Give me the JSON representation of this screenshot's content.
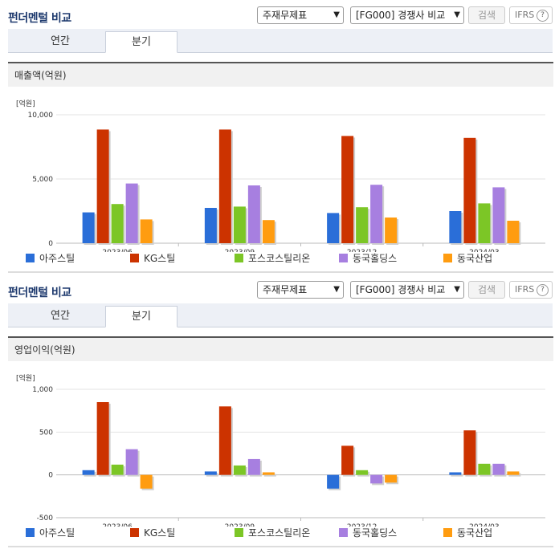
{
  "panels": [
    {
      "title": "펀더멘털 비교",
      "select_type": "주재무제표",
      "select_compare": "[FG000] 경쟁사 비교",
      "search_label": "검색",
      "ifrs_label": "IFRS",
      "help_glyph": "?",
      "tabs": [
        "연간",
        "분기"
      ],
      "active_tab": "분기",
      "metric_label": "매출액(억원)",
      "unit_label": "[억원]"
    },
    {
      "title": "펀더멘털 비교",
      "select_type": "주재무제표",
      "select_compare": "[FG000] 경쟁사 비교",
      "search_label": "검색",
      "ifrs_label": "IFRS",
      "help_glyph": "?",
      "tabs": [
        "연간",
        "분기"
      ],
      "active_tab": "분기",
      "metric_label": "영업이익(억원)",
      "unit_label": "[억원]"
    }
  ],
  "colors": {
    "아주스틸": "#2a6ed8",
    "KG스틸": "#cc3300",
    "포스코스틸리온": "#7cc626",
    "동국홀딩스": "#a77fe0",
    "동국산업": "#ff9c10"
  },
  "chart_data": [
    {
      "type": "bar",
      "categories": [
        "2023/06",
        "2023/09",
        "2023/12",
        "2024/03"
      ],
      "ylim": [
        0,
        10000
      ],
      "yticks": [
        "0",
        "5,000",
        "10,000"
      ],
      "ytick_values": [
        0,
        5000,
        10000
      ],
      "series": [
        {
          "name": "아주스틸",
          "values": [
            2400,
            2750,
            2350,
            2500
          ]
        },
        {
          "name": "KG스틸",
          "values": [
            8850,
            8850,
            8350,
            8200
          ]
        },
        {
          "name": "포스코스틸리온",
          "values": [
            3050,
            2850,
            2800,
            3100
          ]
        },
        {
          "name": "동국홀딩스",
          "values": [
            4650,
            4500,
            4550,
            4350
          ]
        },
        {
          "name": "동국산업",
          "values": [
            1850,
            1800,
            2000,
            1750
          ]
        }
      ],
      "legend_position": "bottom",
      "grid": true
    },
    {
      "type": "bar",
      "categories": [
        "2023/06",
        "2023/09",
        "2023/12",
        "2024/03"
      ],
      "ylim": [
        -500,
        1000
      ],
      "yticks": [
        "-500",
        "0",
        "500",
        "1,000"
      ],
      "ytick_values": [
        -500,
        0,
        500,
        1000
      ],
      "series": [
        {
          "name": "아주스틸",
          "values": [
            55,
            40,
            -160,
            30
          ]
        },
        {
          "name": "KG스틸",
          "values": [
            850,
            800,
            340,
            520
          ]
        },
        {
          "name": "포스코스틸리온",
          "values": [
            120,
            110,
            55,
            130
          ]
        },
        {
          "name": "동국홀딩스",
          "values": [
            300,
            185,
            -100,
            130
          ]
        },
        {
          "name": "동국산업",
          "values": [
            -160,
            30,
            -90,
            40
          ]
        }
      ],
      "legend_position": "bottom",
      "grid": true
    }
  ]
}
